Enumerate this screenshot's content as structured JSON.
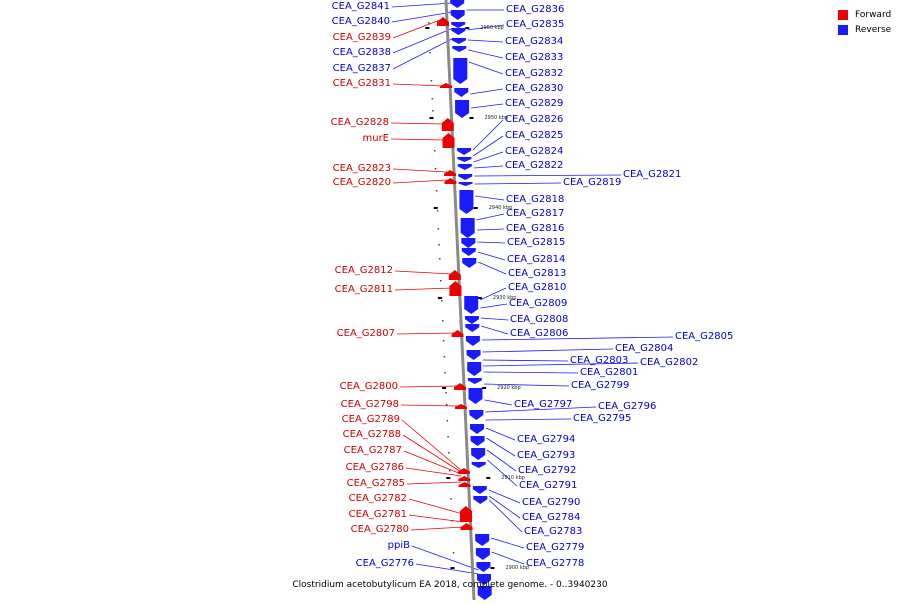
{
  "legend": {
    "forward": {
      "label": "Forward",
      "color": "#ee0000"
    },
    "reverse": {
      "label": "Reverse",
      "color": "#1a1aff"
    }
  },
  "caption": "Clostridium acetobutylicum EA 2018, complete genome. - 0..3940230",
  "ticks": [
    "2960 kbp",
    "2950 kbp",
    "2940 kbp",
    "2930 kbp",
    "2920 kbp",
    "2910 kbp",
    "2900 kbp"
  ],
  "forward_genes": [
    "CEA_G2839",
    "CEA_G2831",
    "CEA_G2828",
    "murE",
    "CEA_G2823",
    "CEA_G2820",
    "CEA_G2812",
    "CEA_G2811",
    "CEA_G2807",
    "CEA_G2800",
    "CEA_G2798",
    "CEA_G2789",
    "CEA_G2788",
    "CEA_G2787",
    "CEA_G2786",
    "CEA_G2785",
    "CEA_G2782",
    "CEA_G2781",
    "CEA_G2780"
  ],
  "reverse_genes": [
    "CEA_G2841",
    "CEA_G2840",
    "CEA_G2838",
    "CEA_G2837",
    "ppiB",
    "CEA_G2776",
    "CEA_G2836",
    "CEA_G2835",
    "CEA_G2834",
    "CEA_G2833",
    "CEA_G2832",
    "CEA_G2830",
    "CEA_G2829",
    "CEA_G2826",
    "CEA_G2825",
    "CEA_G2824",
    "CEA_G2822",
    "CEA_G2821",
    "CEA_G2819",
    "CEA_G2818",
    "CEA_G2817",
    "CEA_G2816",
    "CEA_G2815",
    "CEA_G2814",
    "CEA_G2813",
    "CEA_G2810",
    "CEA_G2809",
    "CEA_G2808",
    "CEA_G2806",
    "CEA_G2805",
    "CEA_G2804",
    "CEA_G2803",
    "CEA_G2802",
    "CEA_G2801",
    "CEA_G2799",
    "CEA_G2797",
    "CEA_G2796",
    "CEA_G2795",
    "CEA_G2794",
    "CEA_G2793",
    "CEA_G2792",
    "CEA_G2791",
    "CEA_G2790",
    "CEA_G2784",
    "CEA_G2783",
    "CEA_G2779",
    "CEA_G2778"
  ]
}
